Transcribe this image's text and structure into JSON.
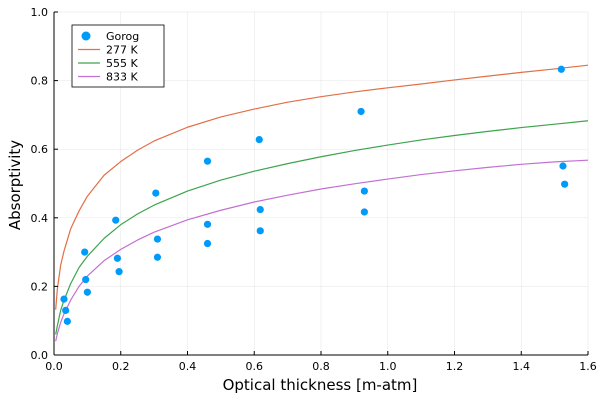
{
  "chart_data": {
    "type": "scatter",
    "title": "",
    "xlabel": "Optical thickness [m-atm]",
    "ylabel": "Absorptivity",
    "xlim": [
      0,
      1.6
    ],
    "ylim": [
      0,
      1.0
    ],
    "xticks": [
      "0.0",
      "0.2",
      "0.4",
      "0.6",
      "0.8",
      "1.0",
      "1.2",
      "1.4",
      "1.6"
    ],
    "yticks": [
      "0.0",
      "0.2",
      "0.4",
      "0.6",
      "0.8",
      "1.0"
    ],
    "grid": true,
    "legend_position": "top-left",
    "series": [
      {
        "name": "Gorog",
        "kind": "scatter",
        "color": "#009af9",
        "points": [
          [
            0.03,
            0.163
          ],
          [
            0.035,
            0.13
          ],
          [
            0.04,
            0.098
          ],
          [
            0.092,
            0.3
          ],
          [
            0.095,
            0.22
          ],
          [
            0.1,
            0.183
          ],
          [
            0.185,
            0.393
          ],
          [
            0.19,
            0.282
          ],
          [
            0.195,
            0.243
          ],
          [
            0.305,
            0.472
          ],
          [
            0.31,
            0.338
          ],
          [
            0.31,
            0.285
          ],
          [
            0.46,
            0.565
          ],
          [
            0.46,
            0.381
          ],
          [
            0.46,
            0.325
          ],
          [
            0.615,
            0.628
          ],
          [
            0.618,
            0.424
          ],
          [
            0.618,
            0.362
          ],
          [
            0.92,
            0.71
          ],
          [
            0.93,
            0.478
          ],
          [
            0.93,
            0.417
          ],
          [
            1.52,
            0.833
          ],
          [
            1.525,
            0.551
          ],
          [
            1.53,
            0.498
          ]
        ]
      },
      {
        "name": "277 K",
        "kind": "line",
        "color": "#e26f46",
        "points": [
          [
            0.005,
            0.132
          ],
          [
            0.01,
            0.192
          ],
          [
            0.02,
            0.262
          ],
          [
            0.03,
            0.303
          ],
          [
            0.05,
            0.368
          ],
          [
            0.075,
            0.42
          ],
          [
            0.1,
            0.463
          ],
          [
            0.15,
            0.524
          ],
          [
            0.2,
            0.564
          ],
          [
            0.25,
            0.597
          ],
          [
            0.3,
            0.624
          ],
          [
            0.4,
            0.664
          ],
          [
            0.5,
            0.694
          ],
          [
            0.6,
            0.717
          ],
          [
            0.7,
            0.737
          ],
          [
            0.8,
            0.753
          ],
          [
            0.9,
            0.767
          ],
          [
            1.0,
            0.779
          ],
          [
            1.1,
            0.79
          ],
          [
            1.2,
            0.802
          ],
          [
            1.3,
            0.813
          ],
          [
            1.4,
            0.824
          ],
          [
            1.5,
            0.834
          ],
          [
            1.6,
            0.845
          ]
        ]
      },
      {
        "name": "555 K",
        "kind": "line",
        "color": "#3da44d",
        "points": [
          [
            0.005,
            0.06
          ],
          [
            0.01,
            0.085
          ],
          [
            0.02,
            0.13
          ],
          [
            0.03,
            0.16
          ],
          [
            0.05,
            0.208
          ],
          [
            0.075,
            0.255
          ],
          [
            0.1,
            0.288
          ],
          [
            0.15,
            0.34
          ],
          [
            0.2,
            0.38
          ],
          [
            0.25,
            0.411
          ],
          [
            0.3,
            0.437
          ],
          [
            0.4,
            0.478
          ],
          [
            0.5,
            0.51
          ],
          [
            0.6,
            0.536
          ],
          [
            0.7,
            0.558
          ],
          [
            0.8,
            0.578
          ],
          [
            0.9,
            0.596
          ],
          [
            1.0,
            0.612
          ],
          [
            1.1,
            0.627
          ],
          [
            1.2,
            0.64
          ],
          [
            1.3,
            0.652
          ],
          [
            1.4,
            0.663
          ],
          [
            1.5,
            0.673
          ],
          [
            1.6,
            0.683
          ]
        ]
      },
      {
        "name": "833 K",
        "kind": "line",
        "color": "#c271d2",
        "points": [
          [
            0.005,
            0.04
          ],
          [
            0.01,
            0.062
          ],
          [
            0.02,
            0.095
          ],
          [
            0.03,
            0.12
          ],
          [
            0.05,
            0.16
          ],
          [
            0.075,
            0.2
          ],
          [
            0.1,
            0.23
          ],
          [
            0.15,
            0.275
          ],
          [
            0.2,
            0.308
          ],
          [
            0.25,
            0.335
          ],
          [
            0.3,
            0.358
          ],
          [
            0.4,
            0.394
          ],
          [
            0.5,
            0.422
          ],
          [
            0.6,
            0.446
          ],
          [
            0.7,
            0.466
          ],
          [
            0.8,
            0.484
          ],
          [
            0.9,
            0.499
          ],
          [
            1.0,
            0.513
          ],
          [
            1.1,
            0.526
          ],
          [
            1.2,
            0.537
          ],
          [
            1.3,
            0.547
          ],
          [
            1.4,
            0.556
          ],
          [
            1.5,
            0.563
          ],
          [
            1.6,
            0.568
          ]
        ]
      }
    ]
  }
}
